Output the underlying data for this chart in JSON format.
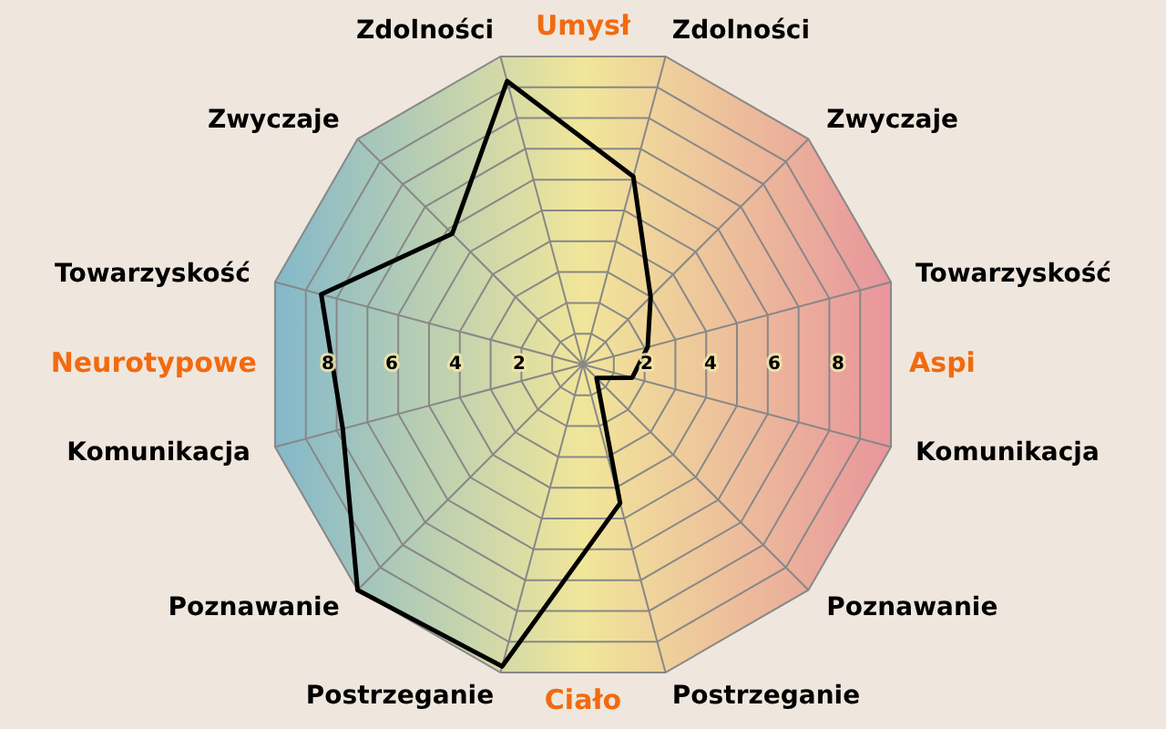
{
  "chart_data": {
    "type": "radar",
    "categories": [
      "Zdolności",
      "Zwyczaje",
      "Towarzyskość",
      "Komunikacja",
      "Poznawanie",
      "Postrzeganie",
      "Postrzeganie",
      "Poznawanie",
      "Komunikacja",
      "Towarzyskość",
      "Zwyczaje",
      "Zdolności"
    ],
    "series": [
      {
        "color": "#000000",
        "values": [
          6.1,
          3.0,
          2.1,
          1.6,
          0.6,
          4.5,
          9.8,
          10,
          7.8,
          8.5,
          5.8,
          9.2
        ]
      }
    ],
    "ylim": [
      0,
      10
    ],
    "yticks": [
      8,
      6,
      4,
      2,
      2,
      4,
      6,
      8
    ],
    "annotations": [
      "Umysł",
      "Aspi",
      "Ciało",
      "Neurotypowe"
    ],
    "grid": true,
    "legend": false,
    "marker": "none",
    "line_style": "solid"
  }
}
